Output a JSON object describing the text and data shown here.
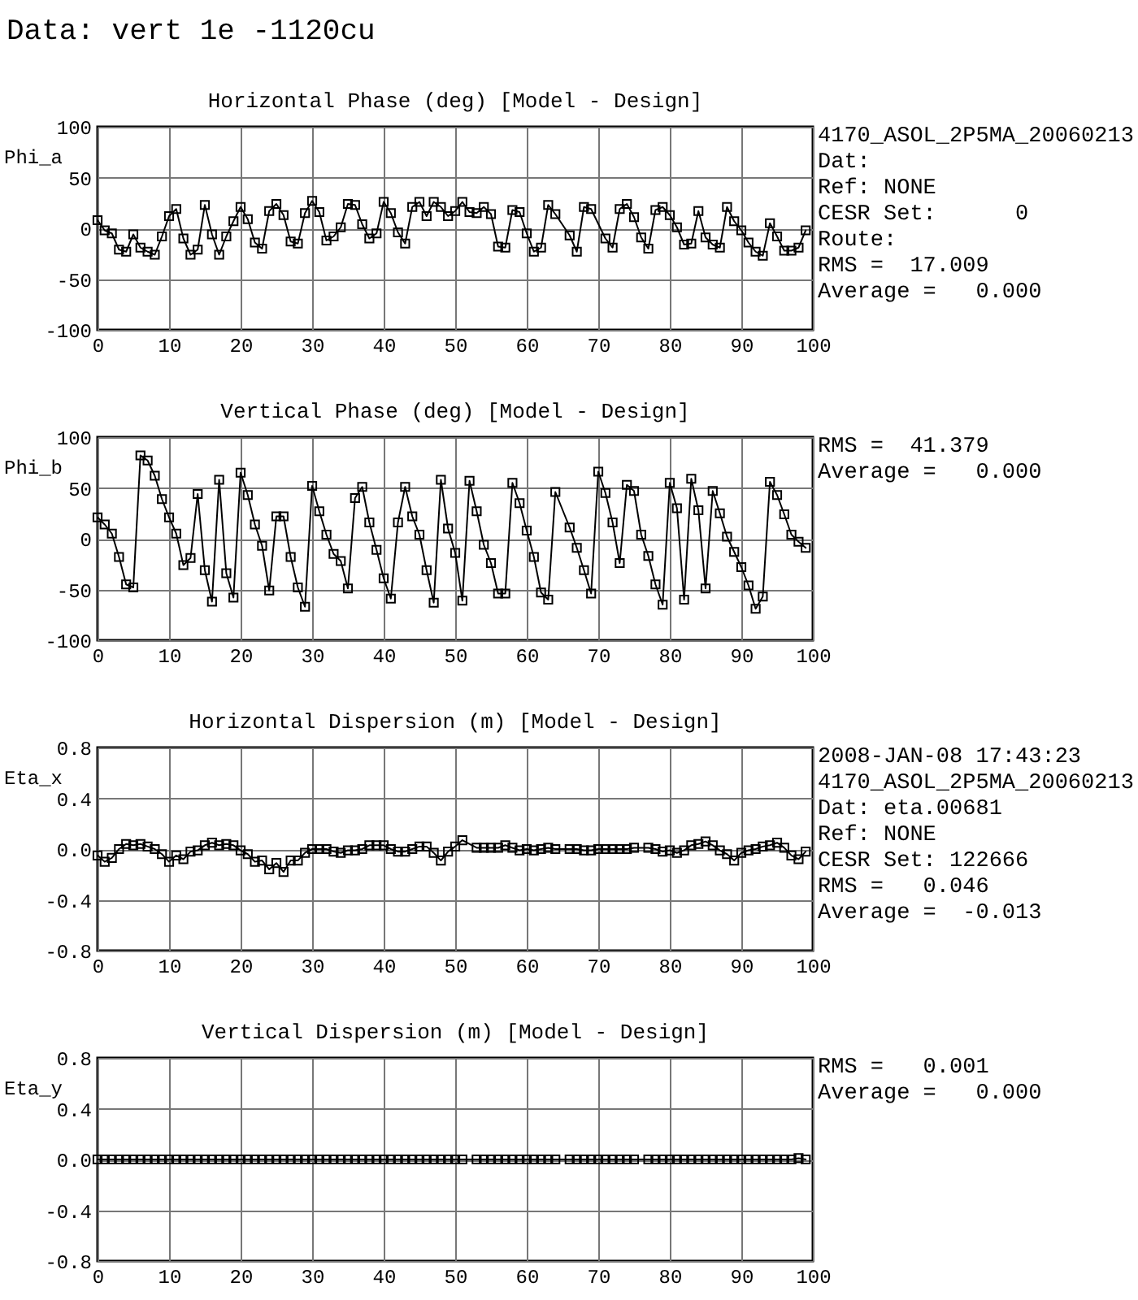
{
  "chart_data": [
    {
      "type": "line",
      "title": "Horizontal Phase (deg) [Model - Design]",
      "subtitle": "Data: vert 1e -1120cu",
      "ylabel": "Phi_a",
      "x": [
        0,
        1,
        2,
        3,
        4,
        5,
        6,
        7,
        8,
        9,
        10,
        11,
        12,
        13,
        14,
        15,
        16,
        17,
        18,
        19,
        20,
        21,
        22,
        23,
        24,
        25,
        26,
        27,
        28,
        29,
        30,
        31,
        32,
        33,
        34,
        35,
        36,
        37,
        38,
        39,
        40,
        41,
        42,
        43,
        44,
        45,
        46,
        47,
        48,
        49,
        50,
        51,
        52,
        53,
        54,
        55,
        56,
        57,
        58,
        59,
        60,
        61,
        62,
        63,
        64,
        66,
        67,
        68,
        69,
        71,
        72,
        73,
        74,
        75,
        76,
        77,
        78,
        79,
        80,
        81,
        82,
        83,
        84,
        85,
        86,
        87,
        88,
        89,
        90,
        91,
        92,
        93,
        94,
        95,
        96,
        97,
        98,
        99
      ],
      "series": [
        {
          "color": "#000000",
          "values": [
            8,
            -2,
            -5,
            -21,
            -23,
            -6,
            -19,
            -23,
            -26,
            -8,
            12,
            19,
            -10,
            -26,
            -21,
            23,
            -6,
            -26,
            -8,
            7,
            21,
            9,
            -14,
            -20,
            17,
            24,
            13,
            -13,
            -15,
            15,
            27,
            16,
            -12,
            -8,
            1,
            24,
            23,
            4,
            -10,
            -5,
            26,
            15,
            -4,
            -15,
            21,
            26,
            12,
            26,
            21,
            12,
            17,
            26,
            16,
            15,
            21,
            14,
            -18,
            -19,
            18,
            16,
            -5,
            -23,
            -19,
            23,
            14,
            -7,
            -23,
            21,
            19,
            -10,
            -19,
            19,
            24,
            11,
            -9,
            -20,
            18,
            21,
            13,
            1,
            -16,
            -15,
            17,
            -9,
            -16,
            -19,
            21,
            7,
            -2,
            -14,
            -23,
            -27,
            5,
            -8,
            -22,
            -22,
            -19,
            -2
          ]
        }
      ],
      "xlim": [
        0,
        100
      ],
      "xticks": [
        0,
        10,
        20,
        30,
        40,
        50,
        60,
        70,
        80,
        90,
        100
      ],
      "ylim": [
        -100,
        100
      ],
      "yticks": [
        -100,
        -50,
        0,
        50,
        100
      ],
      "grid": true,
      "marker": "square",
      "line_style": "solid",
      "annotations": [
        "4170_ASOL_2P5MA_20060213",
        "Dat:",
        "Ref: NONE",
        "CESR Set:      0",
        "Route:",
        "RMS =  17.009",
        "Average =   0.000"
      ]
    },
    {
      "type": "line",
      "title": "Vertical Phase (deg) [Model - Design]",
      "ylabel": "Phi_b",
      "x": [
        0,
        1,
        2,
        3,
        4,
        5,
        6,
        7,
        8,
        9,
        10,
        11,
        12,
        13,
        14,
        15,
        16,
        17,
        18,
        19,
        20,
        21,
        22,
        23,
        24,
        25,
        26,
        27,
        28,
        29,
        30,
        31,
        32,
        33,
        34,
        35,
        36,
        37,
        38,
        39,
        40,
        41,
        42,
        43,
        44,
        45,
        46,
        47,
        48,
        49,
        50,
        51,
        52,
        53,
        54,
        55,
        56,
        57,
        58,
        59,
        60,
        61,
        62,
        63,
        64,
        66,
        67,
        68,
        69,
        70,
        71,
        72,
        73,
        74,
        75,
        76,
        77,
        78,
        79,
        80,
        81,
        82,
        83,
        84,
        85,
        86,
        87,
        88,
        89,
        90,
        91,
        92,
        93,
        94,
        95,
        96,
        97,
        98,
        99
      ],
      "series": [
        {
          "color": "#000000",
          "values": [
            21,
            14,
            5,
            -18,
            -45,
            -48,
            82,
            77,
            62,
            39,
            21,
            5,
            -26,
            -19,
            44,
            -31,
            -62,
            58,
            -34,
            -58,
            65,
            43,
            14,
            -7,
            -51,
            22,
            22,
            -18,
            -48,
            -67,
            52,
            27,
            4,
            -15,
            -22,
            -49,
            40,
            51,
            16,
            -11,
            -39,
            -59,
            16,
            51,
            22,
            4,
            -31,
            -63,
            58,
            10,
            -14,
            -61,
            57,
            27,
            -6,
            -24,
            -54,
            -54,
            55,
            35,
            8,
            -18,
            -53,
            -60,
            46,
            11,
            -9,
            -31,
            -54,
            66,
            45,
            16,
            -24,
            53,
            47,
            4,
            -17,
            -45,
            -65,
            55,
            30,
            -60,
            59,
            28,
            -49,
            47,
            25,
            2,
            -13,
            -28,
            -46,
            -69,
            -57,
            56,
            43,
            24,
            4,
            -3,
            -9
          ]
        }
      ],
      "xlim": [
        0,
        100
      ],
      "xticks": [
        0,
        10,
        20,
        30,
        40,
        50,
        60,
        70,
        80,
        90,
        100
      ],
      "ylim": [
        -100,
        100
      ],
      "yticks": [
        -100,
        -50,
        0,
        50,
        100
      ],
      "grid": true,
      "marker": "square",
      "line_style": "solid",
      "annotations": [
        "RMS =  41.379",
        "Average =   0.000"
      ]
    },
    {
      "type": "line",
      "title": "Horizontal Dispersion (m) [Model - Design]",
      "ylabel": "Eta_x",
      "x": [
        0,
        1,
        2,
        3,
        4,
        5,
        6,
        7,
        8,
        9,
        10,
        11,
        12,
        13,
        14,
        15,
        16,
        17,
        18,
        19,
        20,
        21,
        22,
        23,
        24,
        25,
        26,
        27,
        28,
        29,
        30,
        31,
        32,
        33,
        34,
        35,
        36,
        37,
        38,
        39,
        40,
        41,
        42,
        43,
        44,
        45,
        46,
        47,
        48,
        49,
        50,
        51,
        53,
        54,
        55,
        56,
        57,
        58,
        59,
        60,
        61,
        62,
        63,
        64,
        66,
        67,
        68,
        69,
        70,
        71,
        72,
        73,
        74,
        75,
        77,
        78,
        79,
        80,
        81,
        82,
        83,
        84,
        85,
        86,
        87,
        88,
        89,
        90,
        91,
        92,
        93,
        94,
        95,
        96,
        97,
        98,
        99
      ],
      "series": [
        {
          "color": "#000000",
          "values": [
            -0.05,
            -0.1,
            -0.07,
            0,
            0.04,
            0.03,
            0.04,
            0.02,
            0,
            -0.04,
            -0.1,
            -0.05,
            -0.08,
            -0.02,
            -0.01,
            0.03,
            0.05,
            0.03,
            0.04,
            0.03,
            -0.01,
            -0.04,
            -0.1,
            -0.09,
            -0.16,
            -0.11,
            -0.18,
            -0.09,
            -0.09,
            -0.03,
            0,
            0,
            0,
            -0.02,
            -0.03,
            -0.01,
            -0.01,
            0,
            0.03,
            0.03,
            0.03,
            0,
            -0.02,
            -0.02,
            0,
            0.02,
            0.02,
            -0.03,
            -0.09,
            -0.02,
            0.02,
            0.07,
            0.01,
            0.01,
            0.01,
            0.01,
            0.03,
            0.01,
            -0.01,
            0,
            -0.01,
            0,
            0.01,
            0,
            0,
            0,
            -0.01,
            -0.01,
            0,
            0,
            0,
            0,
            0,
            0.01,
            0.01,
            0,
            -0.02,
            -0.01,
            -0.03,
            -0.01,
            0.03,
            0.04,
            0.06,
            0.03,
            -0.01,
            -0.04,
            -0.09,
            -0.03,
            -0.01,
            0,
            0.02,
            0.03,
            0.05,
            0.01,
            -0.05,
            -0.08,
            -0.02
          ]
        }
      ],
      "xlim": [
        0,
        100
      ],
      "xticks": [
        0,
        10,
        20,
        30,
        40,
        50,
        60,
        70,
        80,
        90,
        100
      ],
      "ylim": [
        -0.8,
        0.8
      ],
      "yticks": [
        -0.8,
        -0.4,
        {
          "value": 0,
          "label": "0.0"
        },
        0.4,
        0.8
      ],
      "grid": true,
      "marker": "square",
      "line_style": "solid",
      "annotations": [
        "2008-JAN-08 17:43:23",
        "4170_ASOL_2P5MA_20060213",
        "Dat: eta.00681",
        "Ref: NONE",
        "CESR Set: 122666",
        "RMS =   0.046",
        "Average =  -0.013"
      ]
    },
    {
      "type": "line",
      "title": "Vertical Dispersion (m) [Model - Design]",
      "ylabel": "Eta_y",
      "x": [
        0,
        1,
        2,
        3,
        4,
        5,
        6,
        7,
        8,
        9,
        10,
        11,
        12,
        13,
        14,
        15,
        16,
        17,
        18,
        19,
        20,
        21,
        22,
        23,
        24,
        25,
        26,
        27,
        28,
        29,
        30,
        31,
        32,
        33,
        34,
        35,
        36,
        37,
        38,
        39,
        40,
        41,
        42,
        43,
        44,
        45,
        46,
        47,
        48,
        49,
        50,
        51,
        53,
        54,
        55,
        56,
        57,
        58,
        59,
        60,
        61,
        62,
        63,
        64,
        66,
        67,
        68,
        69,
        70,
        71,
        72,
        73,
        74,
        75,
        77,
        78,
        79,
        80,
        81,
        82,
        83,
        84,
        85,
        86,
        87,
        88,
        89,
        90,
        91,
        92,
        93,
        94,
        95,
        96,
        97,
        98,
        99
      ],
      "series": [
        {
          "color": "#000000",
          "values": [
            0,
            0,
            0,
            0,
            0,
            0,
            0,
            0,
            0,
            0,
            0,
            0,
            0,
            0,
            0,
            0,
            0,
            0,
            0,
            0,
            0,
            0,
            0,
            0,
            0,
            0,
            0,
            0,
            0,
            0,
            0,
            0,
            0,
            0,
            0,
            0,
            0,
            0,
            0,
            0,
            0,
            0,
            0,
            0,
            0,
            0,
            0,
            0,
            0,
            0,
            0,
            0,
            0,
            0,
            0,
            0,
            0,
            0,
            0,
            0,
            0,
            0,
            0,
            0,
            0,
            0,
            0,
            0,
            0,
            0,
            0,
            0,
            0,
            0,
            0,
            0,
            0,
            0,
            0,
            0,
            0,
            0,
            0,
            0,
            0,
            0,
            0,
            0,
            0,
            0,
            0,
            0,
            0,
            0,
            0,
            0.01,
            0
          ]
        }
      ],
      "xlim": [
        0,
        100
      ],
      "xticks": [
        0,
        10,
        20,
        30,
        40,
        50,
        60,
        70,
        80,
        90,
        100
      ],
      "ylim": [
        -0.8,
        0.8
      ],
      "yticks": [
        -0.8,
        -0.4,
        {
          "value": 0,
          "label": "0.0"
        },
        0.4,
        0.8
      ],
      "grid": true,
      "marker": "square",
      "line_style": "solid",
      "annotations": [
        "RMS =   0.001",
        "Average =   0.000"
      ]
    }
  ]
}
